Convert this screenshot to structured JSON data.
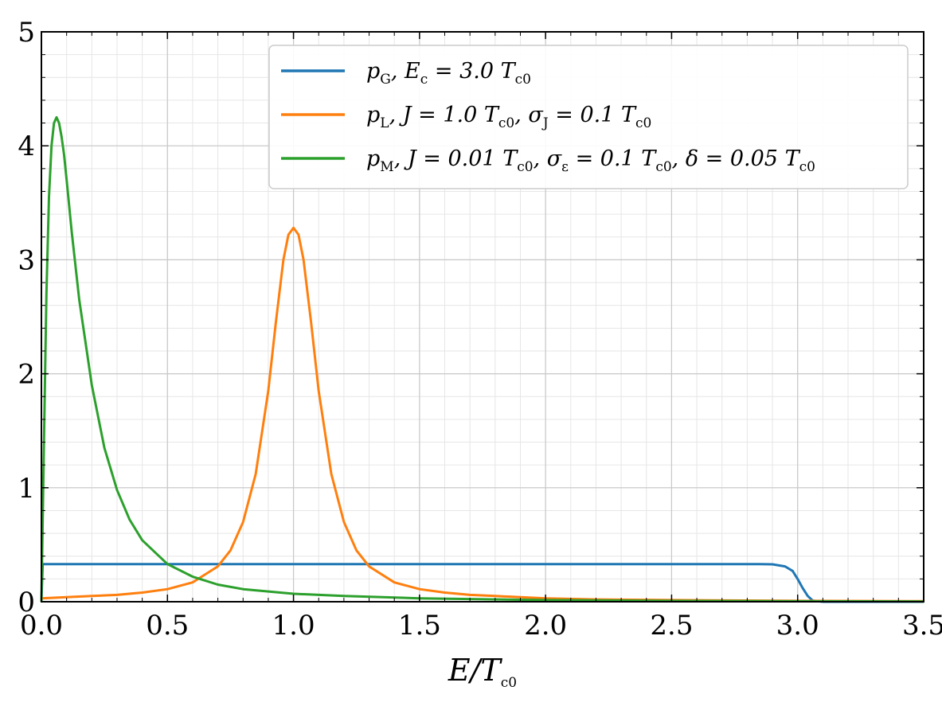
{
  "chart_data": {
    "type": "line",
    "xlabel": "E/T",
    "xlabel_sub": "c0",
    "ylabel": "",
    "xlim": [
      0,
      3.5
    ],
    "ylim": [
      0,
      5
    ],
    "xticks": [
      "0.0",
      "0.5",
      "1.0",
      "1.5",
      "2.0",
      "2.5",
      "3.0",
      "3.5"
    ],
    "yticks": [
      "0",
      "1",
      "2",
      "3",
      "4",
      "5"
    ],
    "grid": true,
    "minor_grid": true,
    "legend_position": "top-right",
    "series": [
      {
        "name": "p_G, E_c = 3.0 T_c0",
        "color": "#1f77b4",
        "x": [
          0.0,
          0.005,
          0.5,
          1.0,
          1.5,
          2.0,
          2.5,
          2.85,
          2.9,
          2.95,
          2.98,
          3.0,
          3.02,
          3.04,
          3.06,
          3.1,
          3.5
        ],
        "y": [
          0.0,
          0.33,
          0.33,
          0.33,
          0.33,
          0.33,
          0.33,
          0.33,
          0.328,
          0.31,
          0.27,
          0.2,
          0.12,
          0.05,
          0.01,
          0.0,
          0.0
        ]
      },
      {
        "name": "p_L, J = 1.0 T_c0, σ_J = 0.1 T_c0",
        "color": "#ff7f0e",
        "x": [
          0.0,
          0.1,
          0.2,
          0.3,
          0.4,
          0.5,
          0.6,
          0.7,
          0.75,
          0.8,
          0.85,
          0.9,
          0.93,
          0.96,
          0.98,
          1.0,
          1.02,
          1.04,
          1.07,
          1.1,
          1.15,
          1.2,
          1.25,
          1.3,
          1.4,
          1.5,
          1.6,
          1.7,
          1.8,
          2.0,
          2.2,
          2.5,
          3.0,
          3.5
        ],
        "y": [
          0.03,
          0.04,
          0.05,
          0.06,
          0.08,
          0.11,
          0.17,
          0.31,
          0.45,
          0.7,
          1.12,
          1.85,
          2.45,
          3.0,
          3.22,
          3.28,
          3.22,
          3.0,
          2.45,
          1.85,
          1.12,
          0.7,
          0.45,
          0.31,
          0.17,
          0.11,
          0.08,
          0.06,
          0.05,
          0.03,
          0.02,
          0.015,
          0.008,
          0.005
        ]
      },
      {
        "name": "p_M, J = 0.01 T_c0, σ_ε = 0.1 T_c0, δ = 0.05 T_c0",
        "color": "#2ca02c",
        "x": [
          0.0,
          0.01,
          0.02,
          0.03,
          0.04,
          0.05,
          0.06,
          0.07,
          0.08,
          0.09,
          0.1,
          0.12,
          0.15,
          0.2,
          0.25,
          0.3,
          0.35,
          0.4,
          0.5,
          0.6,
          0.7,
          0.8,
          1.0,
          1.2,
          1.5,
          2.0,
          2.5,
          3.0,
          3.5
        ],
        "y": [
          0.0,
          1.4,
          2.7,
          3.55,
          4.0,
          4.2,
          4.25,
          4.2,
          4.08,
          3.92,
          3.7,
          3.25,
          2.65,
          1.9,
          1.35,
          0.98,
          0.72,
          0.54,
          0.33,
          0.22,
          0.15,
          0.11,
          0.07,
          0.05,
          0.03,
          0.015,
          0.008,
          0.004,
          0.002
        ]
      }
    ],
    "legend": [
      {
        "color": "#1f77b4",
        "parts": [
          [
            "p",
            ""
          ],
          [
            "G",
            "sub"
          ],
          [
            ", E",
            ""
          ],
          [
            "c",
            "sub"
          ],
          [
            " = 3.0 T",
            ""
          ],
          [
            "c0",
            "sub"
          ]
        ]
      },
      {
        "color": "#ff7f0e",
        "parts": [
          [
            "p",
            ""
          ],
          [
            "L",
            "sub"
          ],
          [
            ", J = 1.0 T",
            ""
          ],
          [
            "c0",
            "sub"
          ],
          [
            ", σ",
            ""
          ],
          [
            "J",
            "sub"
          ],
          [
            " = 0.1 T",
            ""
          ],
          [
            "c0",
            "sub"
          ]
        ]
      },
      {
        "color": "#2ca02c",
        "parts": [
          [
            "p",
            ""
          ],
          [
            "M",
            "sub"
          ],
          [
            ", J = 0.01 T",
            ""
          ],
          [
            "c0",
            "sub"
          ],
          [
            ", σ",
            ""
          ],
          [
            "ε",
            "sub"
          ],
          [
            " = 0.1 T",
            ""
          ],
          [
            "c0",
            "sub"
          ],
          [
            ", δ = 0.05 T",
            ""
          ],
          [
            "c0",
            "sub"
          ]
        ]
      }
    ]
  }
}
